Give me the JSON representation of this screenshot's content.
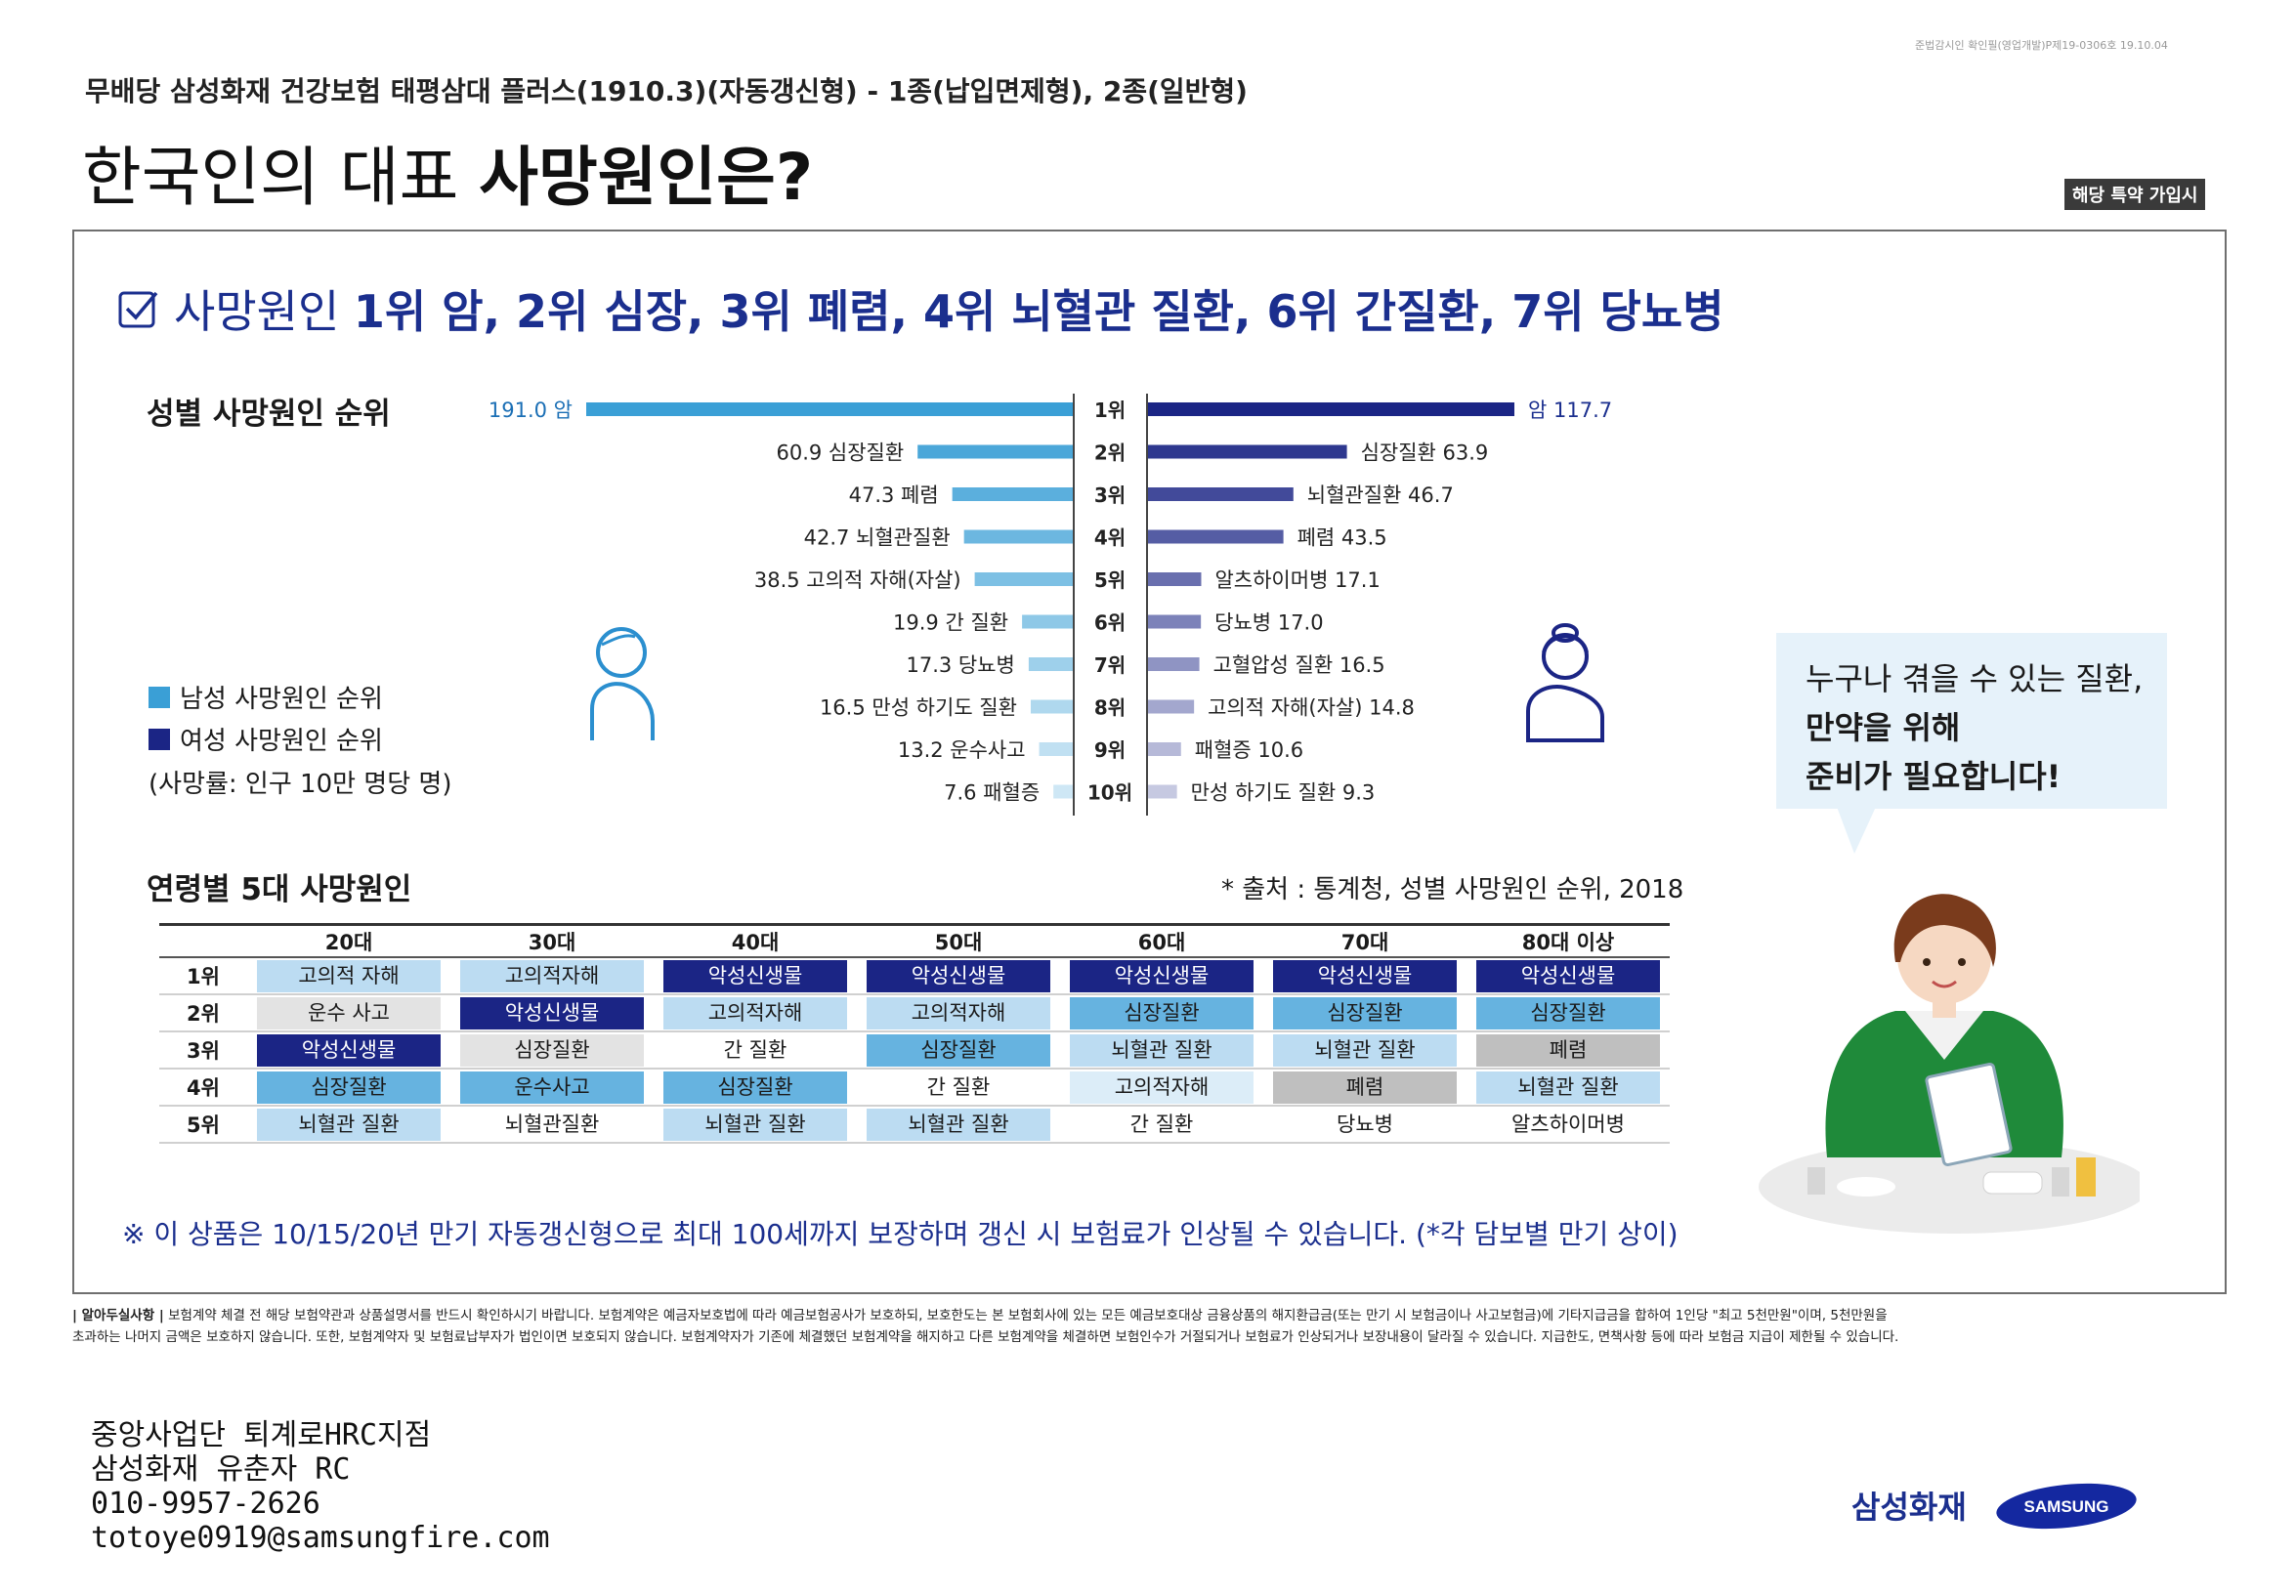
{
  "reg_no": "준법감시인 확인필(영업개발)P제19-0306호 19.10.04",
  "subtitle": "무배당 삼성화재 건강보험 태평삼대 플러스(1910.3)(자동갱신형) - 1종(납입면제형), 2종(일반형)",
  "main_title": {
    "normal": "한국인의 대표 ",
    "bold": "사망원인은?"
  },
  "rider_badge": "해당 특약 가입시",
  "headline": {
    "normal": "사망원인 ",
    "bold": "1위 암, 2위 심장, 3위 폐렴, 4위 뇌혈관 질환, 6위 간질환, 7위 당뇨병"
  },
  "gender_section_title": "성별 사망원인 순위",
  "legend": {
    "male": "남성 사망원인 순위",
    "female": "여성 사망원인 순위",
    "note": "(사망률: 인구 10만 명당 명)"
  },
  "colors": {
    "male": "#3a9fd6",
    "female": "#1b2585",
    "navy": "#1b2f8e"
  },
  "chart_data": {
    "type": "bar",
    "ranks": [
      "1위",
      "2위",
      "3위",
      "4위",
      "5위",
      "6위",
      "7위",
      "8위",
      "9위",
      "10위"
    ],
    "series": [
      {
        "name": "남성 사망원인 순위",
        "labels": [
          "암",
          "심장질환",
          "폐렴",
          "뇌혈관질환",
          "고의적 자해(자살)",
          "간 질환",
          "당뇨병",
          "만성 하기도 질환",
          "운수사고",
          "패혈증"
        ],
        "values": [
          191.0,
          60.9,
          47.3,
          42.7,
          38.5,
          19.9,
          17.3,
          16.5,
          13.2,
          7.6
        ],
        "value_text": [
          "191.0",
          "60.9",
          "47.3",
          "42.7",
          "38.5",
          "19.9",
          "17.3",
          "16.5",
          "13.2",
          "7.6"
        ]
      },
      {
        "name": "여성 사망원인 순위",
        "labels": [
          "암",
          "심장질환",
          "뇌혈관질환",
          "폐렴",
          "알츠하이머병",
          "당뇨병",
          "고혈압성 질환",
          "고의적 자해(자살)",
          "패혈증",
          "만성 하기도 질환"
        ],
        "values": [
          117.7,
          63.9,
          46.7,
          43.5,
          17.1,
          17.0,
          16.5,
          14.8,
          10.6,
          9.3
        ],
        "value_text": [
          "117.7",
          "63.9",
          "46.7",
          "43.5",
          "17.1",
          "17.0",
          "16.5",
          "14.8",
          "10.6",
          "9.3"
        ]
      }
    ]
  },
  "bubble": {
    "line1": "누구나 겪을 수 있는 질환,",
    "line2": "만약을 위해",
    "line3": "준비가 필요합니다!"
  },
  "age_section_title": "연령별 5대 사망원인",
  "source": "* 출처 : 통계청, 성별 사망원인 순위, 2018",
  "age_table": {
    "headers": [
      "20대",
      "30대",
      "40대",
      "50대",
      "60대",
      "70대",
      "80대 이상"
    ],
    "ranks": [
      "1위",
      "2위",
      "3위",
      "4위",
      "5위"
    ],
    "rows": [
      [
        "고의적 자해",
        "고의적자해",
        "악성신생물",
        "악성신생물",
        "악성신생물",
        "악성신생물",
        "악성신생물"
      ],
      [
        "운수 사고",
        "악성신생물",
        "고의적자해",
        "고의적자해",
        "심장질환",
        "심장질환",
        "심장질환"
      ],
      [
        "악성신생물",
        "심장질환",
        "간 질환",
        "심장질환",
        "뇌혈관 질환",
        "뇌혈관 질환",
        "폐렴"
      ],
      [
        "심장질환",
        "운수사고",
        "심장질환",
        "간 질환",
        "고의적자해",
        "폐렴",
        "뇌혈관 질환"
      ],
      [
        "뇌혈관 질환",
        "뇌혈관질환",
        "뇌혈관 질환",
        "뇌혈관 질환",
        "간 질환",
        "당뇨병",
        "알츠하이머병"
      ]
    ],
    "cell_colors": [
      [
        "#bcdcf2",
        "#bcdcf2",
        "#1b2585",
        "#1b2585",
        "#1b2585",
        "#1b2585",
        "#1b2585"
      ],
      [
        "#e3e3e3",
        "#1b2585",
        "#bcdcf2",
        "#bcdcf2",
        "#66b3e0",
        "#66b3e0",
        "#66b3e0"
      ],
      [
        "#1b2585",
        "#e3e3e3",
        "#ffffff",
        "#66b3e0",
        "#bcdcf2",
        "#bcdcf2",
        "#bfbfbf"
      ],
      [
        "#66b3e0",
        "#66b3e0",
        "#66b3e0",
        "#ffffff",
        "#dcedf8",
        "#bfbfbf",
        "#bcdcf2"
      ],
      [
        "#bcdcf2",
        "#ffffff",
        "#bcdcf2",
        "#bcdcf2",
        "#ffffff",
        "#ffffff",
        "#ffffff"
      ]
    ]
  },
  "notice": "※ 이 상품은 10/15/20년 만기 자동갱신형으로 최대 100세까지 보장하며 갱신 시 보험료가 인상될 수 있습니다. (*각 담보별 만기 상이)",
  "fine_print": {
    "label": "| 알아두실사항 |",
    "line1": "보험계약 체결 전 해당 보험약관과 상품설명서를 반드시 확인하시기 바랍니다. 보험계약은 예금자보호법에 따라 예금보험공사가 보호하되, 보호한도는 본 보험회사에 있는 모든 예금보호대상 금융상품의 해지환급금(또는 만기 시 보험금이나 사고보험금)에 기타지급금을 합하여 1인당 \"최고 5천만원\"이며, 5천만원을",
    "line2": "초과하는 나머지 금액은 보호하지 않습니다. 또한, 보험계약자 및 보험료납부자가 법인이면 보호되지 않습니다. 보험계약자가 기존에 체결했던 보험계약을 해지하고 다른 보험계약을 체결하면 보험인수가 거절되거나 보험료가 인상되거나 보장내용이 달라질 수 있습니다. 지급한도, 면책사항 등에 따라 보험금 지급이 제한될 수 있습니다."
  },
  "contact": {
    "office": "중앙사업단 퇴계로HRC지점",
    "agent": "삼성화재 유춘자 RC",
    "phone": "010-9957-2626",
    "email": "totoye0919@samsungfire.com"
  },
  "brand": {
    "kr": "삼성화재",
    "logo": "SAMSUNG"
  }
}
